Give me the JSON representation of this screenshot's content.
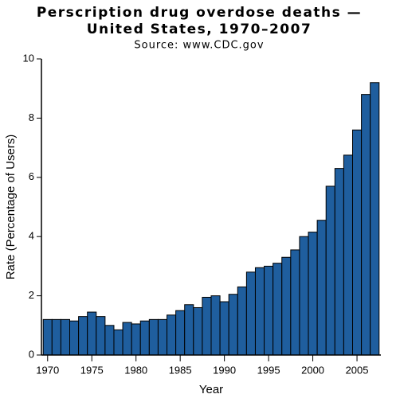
{
  "chart_data": {
    "type": "bar",
    "title": [
      "Perscription drug overdose deaths —",
      "United States, 1970–2007"
    ],
    "subtitle": "Source: www.CDC.gov",
    "x_label": "Year",
    "y_label": "Rate (Percentage of Users)",
    "x": [
      1970,
      1971,
      1972,
      1973,
      1974,
      1975,
      1976,
      1977,
      1978,
      1979,
      1980,
      1981,
      1982,
      1983,
      1984,
      1985,
      1986,
      1987,
      1988,
      1989,
      1990,
      1991,
      1992,
      1993,
      1994,
      1995,
      1996,
      1997,
      1998,
      1999,
      2000,
      2001,
      2002,
      2003,
      2004,
      2005,
      2006,
      2007
    ],
    "values": [
      1.2,
      1.2,
      1.2,
      1.15,
      1.3,
      1.45,
      1.3,
      1.0,
      0.85,
      1.1,
      1.05,
      1.15,
      1.2,
      1.2,
      1.35,
      1.5,
      1.7,
      1.6,
      1.95,
      2.0,
      1.8,
      2.05,
      2.3,
      2.8,
      2.95,
      3.0,
      3.1,
      3.3,
      3.55,
      4.0,
      4.15,
      4.55,
      5.7,
      6.3,
      6.75,
      7.6,
      8.8,
      9.2
    ],
    "color": "#1f5e9e",
    "xlim": [
      1969.3,
      2007.7
    ],
    "xticks": [
      1970,
      1975,
      1980,
      1985,
      1990,
      1995,
      2000,
      2005
    ],
    "ylim": [
      0,
      10
    ],
    "yticks": [
      0,
      2,
      4,
      6,
      8,
      10
    ]
  }
}
